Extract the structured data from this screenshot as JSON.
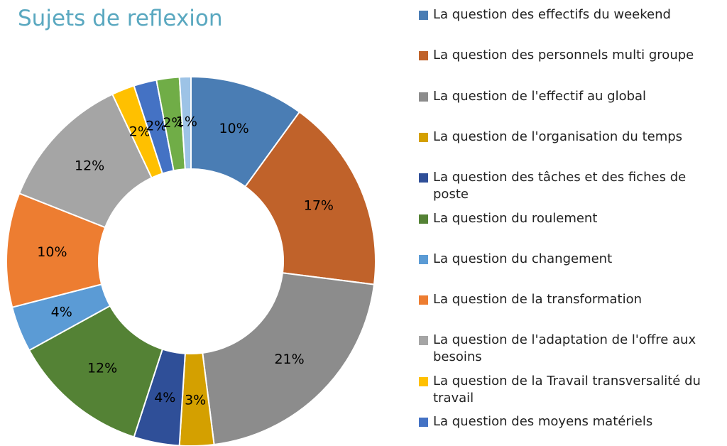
{
  "chart_data": {
    "type": "pie",
    "title": "Sujets de reflexion",
    "categories": [
      "La question des effectifs du weekend",
      "La question des personnels multi groupe",
      "La question de l'effectif au global",
      "La question de l'organisation du temps",
      "La question des tâches et des fiches de poste",
      "La question du roulement",
      "La question du changement",
      "La question de la transformation",
      "La question de l'adaptation de l'offre aux besoins",
      "La question de la Travail transversalité du travail",
      "La question des moyens matériels",
      null,
      null
    ],
    "values": [
      10,
      17,
      21,
      3,
      4,
      12,
      4,
      10,
      12,
      2,
      2,
      2,
      1
    ],
    "value_labels": [
      "10%",
      "17%",
      "21%",
      "3%",
      "4%",
      "12%",
      "4%",
      "10%",
      "12%",
      "2%",
      "2%",
      "2%",
      "1%"
    ],
    "colors": [
      "#4a7db4",
      "#c0622a",
      "#8c8c8c",
      "#d4a000",
      "#2f4f98",
      "#548235",
      "#5b9bd5",
      "#ed7d31",
      "#a5a5a5",
      "#ffc000",
      "#4472c4",
      "#70ad47",
      "#9dc3e6"
    ]
  }
}
